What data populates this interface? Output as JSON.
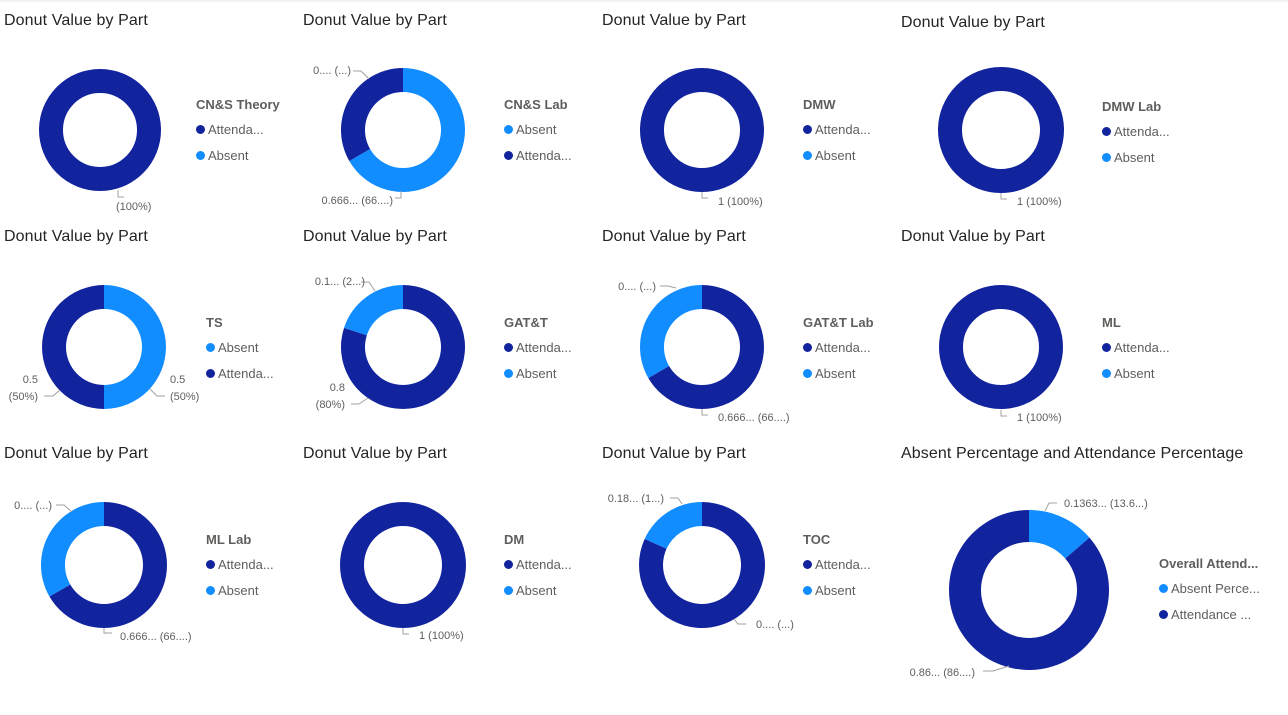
{
  "colors": {
    "attendance": "#12239e",
    "absent": "#118dff"
  },
  "chart_data": [
    {
      "type": "pie",
      "title": "Donut Value by Part",
      "legend_title": "CN&S Theory",
      "legend_position": "right",
      "legend": [
        {
          "label": "Attenda...",
          "color": "#12239e"
        },
        {
          "label": "Absent",
          "color": "#118dff"
        }
      ],
      "slices": [
        {
          "name": "Attendance",
          "value": 1,
          "color": "#12239e"
        }
      ],
      "data_labels": [
        {
          "lines": [
            "(100%)"
          ]
        }
      ]
    },
    {
      "type": "pie",
      "title": "Donut Value by Part",
      "legend_title": "CN&S Lab",
      "legend_position": "right",
      "legend": [
        {
          "label": "Absent",
          "color": "#118dff"
        },
        {
          "label": "Attenda...",
          "color": "#12239e"
        }
      ],
      "slices": [
        {
          "name": "Absent",
          "value": 0.6667,
          "color": "#118dff"
        },
        {
          "name": "Attendance",
          "value": 0.3333,
          "color": "#12239e"
        }
      ],
      "data_labels": [
        {
          "lines": [
            "0.666... (66....)"
          ]
        },
        {
          "lines": [
            "0.... (...)"
          ]
        }
      ]
    },
    {
      "type": "pie",
      "title": "Donut Value by Part",
      "legend_title": "DMW",
      "legend_position": "right",
      "legend": [
        {
          "label": "Attenda...",
          "color": "#12239e"
        },
        {
          "label": "Absent",
          "color": "#118dff"
        }
      ],
      "slices": [
        {
          "name": "Attendance",
          "value": 1,
          "color": "#12239e"
        }
      ],
      "data_labels": [
        {
          "lines": [
            "1 (100%)"
          ]
        }
      ]
    },
    {
      "type": "pie",
      "title": "Donut Value by Part",
      "legend_title": "DMW Lab",
      "legend_position": "right",
      "legend": [
        {
          "label": "Attenda...",
          "color": "#12239e"
        },
        {
          "label": "Absent",
          "color": "#118dff"
        }
      ],
      "slices": [
        {
          "name": "Attendance",
          "value": 1,
          "color": "#12239e"
        }
      ],
      "data_labels": [
        {
          "lines": [
            "1 (100%)"
          ]
        }
      ]
    },
    {
      "type": "pie",
      "title": "Donut Value by Part",
      "legend_title": "TS",
      "legend_position": "right",
      "legend": [
        {
          "label": "Absent",
          "color": "#118dff"
        },
        {
          "label": "Attenda...",
          "color": "#12239e"
        }
      ],
      "slices": [
        {
          "name": "Absent",
          "value": 0.5,
          "color": "#118dff"
        },
        {
          "name": "Attendance",
          "value": 0.5,
          "color": "#12239e"
        }
      ],
      "data_labels": [
        {
          "lines": [
            "0.5",
            "(50%)"
          ]
        },
        {
          "lines": [
            "0.5",
            "(50%)"
          ]
        }
      ]
    },
    {
      "type": "pie",
      "title": "Donut Value by Part",
      "legend_title": "GAT&T",
      "legend_position": "right",
      "legend": [
        {
          "label": "Attenda...",
          "color": "#12239e"
        },
        {
          "label": "Absent",
          "color": "#118dff"
        }
      ],
      "slices": [
        {
          "name": "Attendance",
          "value": 0.8,
          "color": "#12239e"
        },
        {
          "name": "Absent",
          "value": 0.2,
          "color": "#118dff"
        }
      ],
      "data_labels": [
        {
          "lines": [
            "0.8",
            "(80%)"
          ]
        },
        {
          "lines": [
            "0.1... (2...)"
          ]
        }
      ]
    },
    {
      "type": "pie",
      "title": "Donut Value by Part",
      "legend_title": "GAT&T Lab",
      "legend_position": "right",
      "legend": [
        {
          "label": "Attenda...",
          "color": "#12239e"
        },
        {
          "label": "Absent",
          "color": "#118dff"
        }
      ],
      "slices": [
        {
          "name": "Attendance",
          "value": 0.6667,
          "color": "#12239e"
        },
        {
          "name": "Absent",
          "value": 0.3333,
          "color": "#118dff"
        }
      ],
      "data_labels": [
        {
          "lines": [
            "0.666... (66....)"
          ]
        },
        {
          "lines": [
            "0.... (...)"
          ]
        }
      ]
    },
    {
      "type": "pie",
      "title": "Donut Value by Part",
      "legend_title": "ML",
      "legend_position": "right",
      "legend": [
        {
          "label": "Attenda...",
          "color": "#12239e"
        },
        {
          "label": "Absent",
          "color": "#118dff"
        }
      ],
      "slices": [
        {
          "name": "Attendance",
          "value": 1,
          "color": "#12239e"
        }
      ],
      "data_labels": [
        {
          "lines": [
            "1 (100%)"
          ]
        }
      ]
    },
    {
      "type": "pie",
      "title": "Donut Value by Part",
      "legend_title": "ML Lab",
      "legend_position": "right",
      "legend": [
        {
          "label": "Attenda...",
          "color": "#12239e"
        },
        {
          "label": "Absent",
          "color": "#118dff"
        }
      ],
      "slices": [
        {
          "name": "Attendance",
          "value": 0.6667,
          "color": "#12239e"
        },
        {
          "name": "Absent",
          "value": 0.3333,
          "color": "#118dff"
        }
      ],
      "data_labels": [
        {
          "lines": [
            "0.666... (66....)"
          ]
        },
        {
          "lines": [
            "0.... (...)"
          ]
        }
      ]
    },
    {
      "type": "pie",
      "title": "Donut Value by Part",
      "legend_title": "DM",
      "legend_position": "right",
      "legend": [
        {
          "label": "Attenda...",
          "color": "#12239e"
        },
        {
          "label": "Absent",
          "color": "#118dff"
        }
      ],
      "slices": [
        {
          "name": "Attendance",
          "value": 1,
          "color": "#12239e"
        }
      ],
      "data_labels": [
        {
          "lines": [
            "1 (100%)"
          ]
        }
      ]
    },
    {
      "type": "pie",
      "title": "Donut Value by Part",
      "legend_title": "TOC",
      "legend_position": "right",
      "legend": [
        {
          "label": "Attenda...",
          "color": "#12239e"
        },
        {
          "label": "Absent",
          "color": "#118dff"
        }
      ],
      "slices": [
        {
          "name": "Attendance",
          "value": 0.8182,
          "color": "#12239e"
        },
        {
          "name": "Absent",
          "value": 0.1818,
          "color": "#118dff"
        }
      ],
      "data_labels": [
        {
          "lines": [
            "0.... (...)"
          ]
        },
        {
          "lines": [
            "0.18... (1...)"
          ]
        }
      ]
    },
    {
      "type": "pie",
      "title": "Absent Percentage and Attendance Percentage",
      "legend_title": "Overall Attend...",
      "legend_position": "right",
      "legend": [
        {
          "label": "Absent Perce...",
          "color": "#118dff"
        },
        {
          "label": "Attendance ...",
          "color": "#12239e"
        }
      ],
      "slices": [
        {
          "name": "Absent Percentage",
          "value": 0.1363,
          "color": "#118dff"
        },
        {
          "name": "Attendance Percentage",
          "value": 0.8637,
          "color": "#12239e"
        }
      ],
      "data_labels": [
        {
          "lines": [
            "0.1363... (13.6...)"
          ]
        },
        {
          "lines": [
            "0.86... (86....)"
          ]
        }
      ]
    }
  ]
}
